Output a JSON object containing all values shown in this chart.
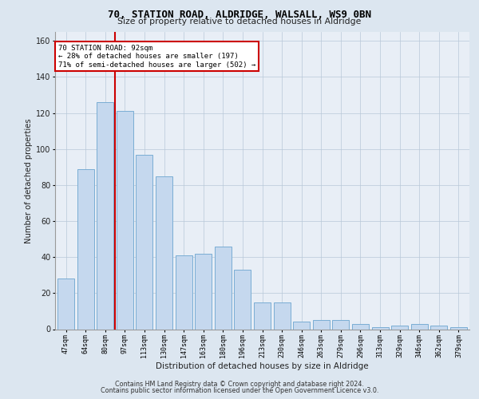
{
  "title1": "70, STATION ROAD, ALDRIDGE, WALSALL, WS9 0BN",
  "title2": "Size of property relative to detached houses in Aldridge",
  "xlabel": "Distribution of detached houses by size in Aldridge",
  "ylabel": "Number of detached properties",
  "categories": [
    "47sqm",
    "64sqm",
    "80sqm",
    "97sqm",
    "113sqm",
    "130sqm",
    "147sqm",
    "163sqm",
    "180sqm",
    "196sqm",
    "213sqm",
    "230sqm",
    "246sqm",
    "263sqm",
    "279sqm",
    "296sqm",
    "313sqm",
    "329sqm",
    "346sqm",
    "362sqm",
    "379sqm"
  ],
  "values": [
    28,
    89,
    126,
    121,
    97,
    85,
    41,
    42,
    46,
    33,
    15,
    15,
    4,
    5,
    5,
    3,
    1,
    2,
    3,
    2,
    1
  ],
  "bar_color": "#c5d8ee",
  "bar_edge_color": "#7aadd4",
  "vline_color": "#cc0000",
  "annotation_title": "70 STATION ROAD: 92sqm",
  "annotation_line1": "← 28% of detached houses are smaller (197)",
  "annotation_line2": "71% of semi-detached houses are larger (502) →",
  "ylim": [
    0,
    165
  ],
  "yticks": [
    0,
    20,
    40,
    60,
    80,
    100,
    120,
    140,
    160
  ],
  "bg_color": "#dce6f0",
  "plot_bg_color": "#e8eef6",
  "footer1": "Contains HM Land Registry data © Crown copyright and database right 2024.",
  "footer2": "Contains public sector information licensed under the Open Government Licence v3.0."
}
